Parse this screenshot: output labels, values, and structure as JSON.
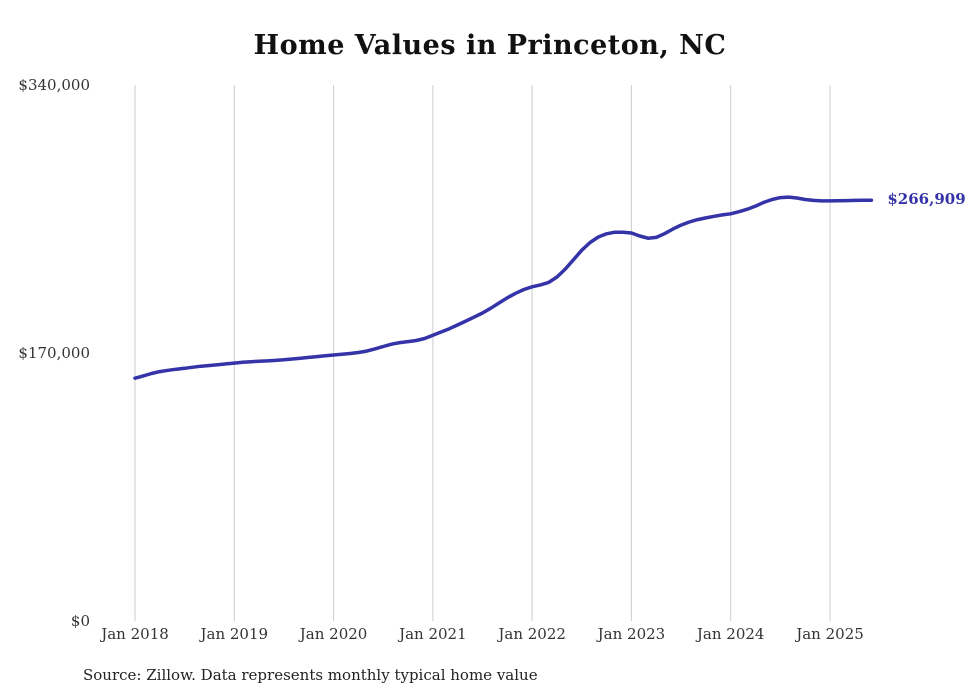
{
  "title": "Home Values in Princeton, NC",
  "end_label": "$266,909",
  "source": "Source: Zillow. Data represents monthly typical home value",
  "colors": {
    "line": "#3533a8",
    "end_label": "#3533a8",
    "grid": "#cccccc",
    "axis_text": "#333333"
  },
  "chart_data": {
    "type": "line",
    "title": "Home Values in Princeton, NC",
    "series_name": "Monthly typical home value",
    "start_month": "2018-01",
    "end_month": "2025-06",
    "end_value": 266909,
    "ylim": [
      0,
      340000
    ],
    "y_ticks": [
      0,
      170000,
      340000
    ],
    "y_tick_labels": [
      "$0",
      "$170,000",
      "$340,000"
    ],
    "x_tick_labels": [
      "Jan 2018",
      "Jan 2019",
      "Jan 2020",
      "Jan 2021",
      "Jan 2022",
      "Jan 2023",
      "Jan 2024",
      "Jan 2025"
    ],
    "grid": "vertical",
    "legend": "none",
    "values": [
      154000,
      155500,
      157000,
      158200,
      159000,
      159700,
      160300,
      161000,
      161600,
      162100,
      162600,
      163100,
      163600,
      164100,
      164500,
      164800,
      165000,
      165300,
      165700,
      166200,
      166700,
      167200,
      167700,
      168200,
      168700,
      169200,
      169700,
      170300,
      171200,
      172600,
      174100,
      175600,
      176600,
      177200,
      177900,
      179200,
      181200,
      183300,
      185400,
      187800,
      190300,
      192800,
      195400,
      198400,
      201700,
      205000,
      207900,
      210300,
      212000,
      213200,
      214800,
      218200,
      223200,
      229200,
      235200,
      240100,
      243600,
      245600,
      246600,
      246600,
      246100,
      244200,
      242800,
      243300,
      245700,
      248600,
      251100,
      253100,
      254600,
      255700,
      256700,
      257600,
      258300,
      259600,
      261200,
      263200,
      265500,
      267400,
      268600,
      268900,
      268300,
      267400,
      266800,
      266500,
      266500,
      266600,
      266700,
      266800,
      266850,
      266909
    ]
  }
}
